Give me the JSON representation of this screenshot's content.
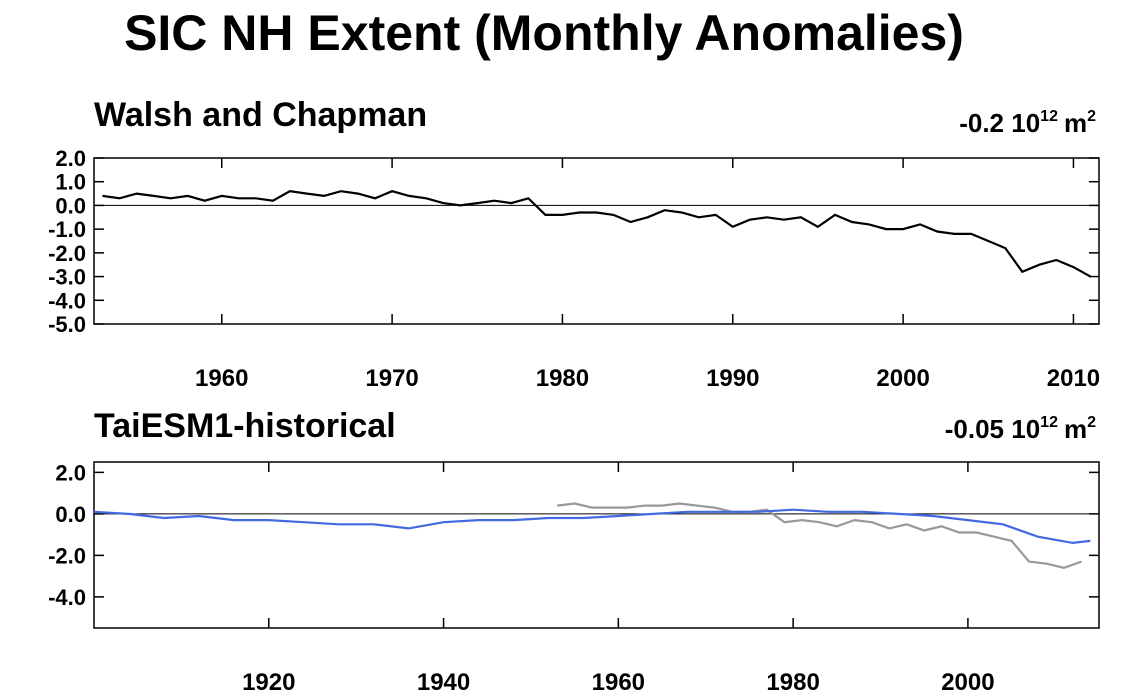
{
  "title": "SIC NH Extent (Monthly Anomalies)",
  "chart_data": [
    {
      "type": "line",
      "title": "Walsh and Chapman",
      "trend_value": "-0.2",
      "trend_unit_base": "10",
      "trend_unit_exp": "12",
      "trend_unit_tail": "m",
      "trend_unit_tail_exp": "2",
      "xlim": [
        1952.5,
        2011.5
      ],
      "ylim": [
        -5.0,
        2.0
      ],
      "yticks": [
        2.0,
        1.0,
        0.0,
        -1.0,
        -2.0,
        -3.0,
        -4.0,
        -5.0
      ],
      "ytick_labels": [
        "2.0",
        "1.0",
        "0.0",
        "-1.0",
        "-2.0",
        "-3.0",
        "-4.0",
        "-5.0"
      ],
      "xticks": [
        1960,
        1970,
        1980,
        1990,
        2000,
        2010
      ],
      "xtick_labels": [
        "1960",
        "1970",
        "1980",
        "1990",
        "2000",
        "2010"
      ],
      "zero_line": true,
      "series": [
        {
          "color": "#000000",
          "x": [
            1953,
            1954,
            1955,
            1956,
            1957,
            1958,
            1959,
            1960,
            1961,
            1962,
            1963,
            1964,
            1965,
            1966,
            1967,
            1968,
            1969,
            1970,
            1971,
            1972,
            1973,
            1974,
            1975,
            1976,
            1977,
            1978,
            1979,
            1980,
            1981,
            1982,
            1983,
            1984,
            1985,
            1986,
            1987,
            1988,
            1989,
            1990,
            1991,
            1992,
            1993,
            1994,
            1995,
            1996,
            1997,
            1998,
            1999,
            2000,
            2001,
            2002,
            2003,
            2004,
            2005,
            2006,
            2007,
            2008,
            2009,
            2010,
            2011
          ],
          "y": [
            0.4,
            0.3,
            0.5,
            0.4,
            0.3,
            0.4,
            0.2,
            0.4,
            0.3,
            0.3,
            0.2,
            0.6,
            0.5,
            0.4,
            0.6,
            0.5,
            0.3,
            0.6,
            0.4,
            0.3,
            0.1,
            0.0,
            0.1,
            0.2,
            0.1,
            0.3,
            -0.4,
            -0.4,
            -0.3,
            -0.3,
            -0.4,
            -0.7,
            -0.5,
            -0.2,
            -0.3,
            -0.5,
            -0.4,
            -0.9,
            -0.6,
            -0.5,
            -0.6,
            -0.5,
            -0.9,
            -0.4,
            -0.7,
            -0.8,
            -1.0,
            -1.0,
            -0.8,
            -1.1,
            -1.2,
            -1.2,
            -1.5,
            -1.8,
            -2.8,
            -2.5,
            -2.3,
            -2.6,
            -3.0
          ]
        }
      ]
    },
    {
      "type": "line",
      "title": "TaiESM1-historical",
      "trend_value": "-0.05",
      "trend_unit_base": "10",
      "trend_unit_exp": "12",
      "trend_unit_tail": "m",
      "trend_unit_tail_exp": "2",
      "xlim": [
        1900,
        2015
      ],
      "ylim": [
        -5.5,
        2.5
      ],
      "yticks": [
        2.0,
        0.0,
        -2.0,
        -4.0
      ],
      "ytick_labels": [
        "2.0",
        "0.0",
        "-2.0",
        "-4.0"
      ],
      "xticks": [
        1920,
        1940,
        1960,
        1980,
        2000
      ],
      "xtick_labels": [
        "1920",
        "1940",
        "1960",
        "1980",
        "2000"
      ],
      "zero_line": true,
      "series": [
        {
          "color": "#999999",
          "x": [
            1953,
            1955,
            1957,
            1959,
            1961,
            1963,
            1965,
            1967,
            1969,
            1971,
            1973,
            1975,
            1977,
            1979,
            1981,
            1983,
            1985,
            1987,
            1989,
            1991,
            1993,
            1995,
            1997,
            1999,
            2001,
            2003,
            2005,
            2007,
            2009,
            2011,
            2013
          ],
          "y": [
            0.4,
            0.5,
            0.3,
            0.3,
            0.3,
            0.4,
            0.4,
            0.5,
            0.4,
            0.3,
            0.1,
            0.1,
            0.2,
            -0.4,
            -0.3,
            -0.4,
            -0.6,
            -0.3,
            -0.4,
            -0.7,
            -0.5,
            -0.8,
            -0.6,
            -0.9,
            -0.9,
            -1.1,
            -1.3,
            -2.3,
            -2.4,
            -2.6,
            -2.3
          ]
        },
        {
          "color": "#4169e1",
          "x": [
            1900,
            1904,
            1908,
            1912,
            1916,
            1920,
            1924,
            1928,
            1932,
            1936,
            1940,
            1944,
            1948,
            1952,
            1956,
            1960,
            1964,
            1968,
            1972,
            1976,
            1980,
            1984,
            1988,
            1992,
            1996,
            2000,
            2004,
            2008,
            2012,
            2014
          ],
          "y": [
            0.1,
            0.0,
            -0.2,
            -0.1,
            -0.3,
            -0.3,
            -0.4,
            -0.5,
            -0.5,
            -0.7,
            -0.4,
            -0.3,
            -0.3,
            -0.2,
            -0.2,
            -0.1,
            0.0,
            0.1,
            0.1,
            0.1,
            0.2,
            0.1,
            0.1,
            0.0,
            -0.1,
            -0.3,
            -0.5,
            -1.1,
            -1.4,
            -1.3
          ]
        }
      ]
    }
  ]
}
